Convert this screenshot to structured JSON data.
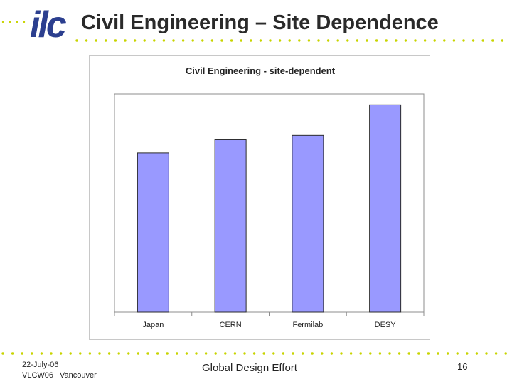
{
  "slide": {
    "title": "Civil Engineering – Site Dependence"
  },
  "logo": {
    "text": "ilc"
  },
  "colors": {
    "bar_fill": "#9999ff",
    "bar_stroke": "#2b2b2b",
    "logo_blue": "#2c3f8f",
    "dots": "#c8d400"
  },
  "chart_data": {
    "type": "bar",
    "title": "Civil Engineering - site-dependent",
    "categories": [
      "Japan",
      "CERN",
      "Fermilab",
      "DESY"
    ],
    "values": [
      73,
      79,
      81,
      95
    ],
    "ylim": [
      0,
      100
    ],
    "xlabel": "",
    "ylabel": "",
    "grid": false,
    "legend": "none"
  },
  "footer": {
    "date": "22-July-06",
    "event": "VLCW06",
    "city": "Vancouver",
    "center": "Global Design Effort",
    "page": "16"
  }
}
